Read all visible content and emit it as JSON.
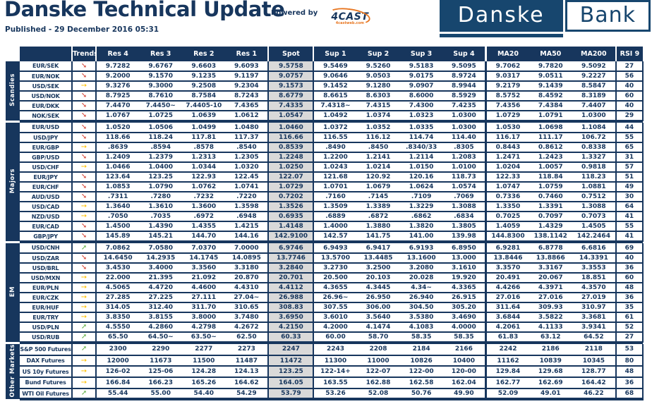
{
  "header": {
    "title": "Danske Technical Update",
    "published": "Published - 29 December 2016 05:31",
    "powered_by": "Powered by",
    "powered_logo": "4CAST",
    "powered_sub": "4castweb.com",
    "logo_danske": "Danske",
    "logo_bank": "Bank"
  },
  "colors": {
    "navy": "#17365d",
    "logo-navy": "#17466e",
    "spot-gray": "#d9d9d9",
    "red": "#d23f31",
    "amber": "#ffc000",
    "green": "#5fae44",
    "orange": "#e87722"
  },
  "trend_icons": {
    "down": "➘",
    "flat": "➙",
    "up": "➚"
  },
  "table": {
    "columns": [
      "Trends",
      "Res 4",
      "Res 3",
      "Res 2",
      "Res 1",
      "Spot",
      "Sup 1",
      "Sup 2",
      "Sup 3",
      "Sup 4",
      "MA20",
      "MA50",
      "MA200",
      "RSI 9"
    ],
    "value_keys": [
      "res4",
      "res3",
      "res2",
      "res1",
      "spot",
      "sup1",
      "sup2",
      "sup3",
      "sup4",
      "ma20",
      "ma50",
      "ma200",
      "rsi"
    ],
    "groups": [
      {
        "label": "Scandies",
        "rows": [
          {
            "pair": "EUR/SEK",
            "trend": "down",
            "values": [
              "9.7282",
              "9.6767",
              "9.6603",
              "9.6093",
              "9.5758",
              "9.5469",
              "9.5260",
              "9.5183",
              "9.5095",
              "9.7062",
              "9.7820",
              "9.5092",
              "27"
            ]
          },
          {
            "pair": "EUR/NOK",
            "trend": "down",
            "values": [
              "9.2000",
              "9.1570",
              "9.1235",
              "9.1197",
              "9.0757",
              "9.0646",
              "9.0503",
              "9.0175",
              "8.9724",
              "9.0317",
              "9.0511",
              "9.2227",
              "56"
            ]
          },
          {
            "pair": "USD/SEK",
            "trend": "flat",
            "values": [
              "9.3276",
              "9.3000",
              "9.2508",
              "9.2304",
              "9.1573",
              "9.1452",
              "9.1280",
              "9.0907",
              "8.9944",
              "9.2179",
              "9.1439",
              "8.5847",
              "40"
            ]
          },
          {
            "pair": "USD/NOK",
            "trend": "down",
            "values": [
              "8.7925",
              "8.7610",
              "8.7584",
              "8.7243",
              "8.6779",
              "8.6615",
              "8.6303",
              "8.6000",
              "8.5929",
              "8.5752",
              "8.4592",
              "8.3189",
              "60"
            ]
          },
          {
            "pair": "EUR/DKK",
            "trend": "down",
            "values": [
              "7.4470",
              "7.4450~",
              "7.4405-10",
              "7.4365",
              "7.4335",
              "7.4318~",
              "7.4315",
              "7.4300",
              "7.4235",
              "7.4356",
              "7.4384",
              "7.4407",
              "40"
            ]
          },
          {
            "pair": "NOK/SEK",
            "trend": "down",
            "values": [
              "1.0767",
              "1.0725",
              "1.0639",
              "1.0612",
              "1.0547",
              "1.0492",
              "1.0374",
              "1.0323",
              "1.0300",
              "1.0729",
              "1.0791",
              "1.0300",
              "29"
            ]
          }
        ]
      },
      {
        "label": "Majors",
        "rows": [
          {
            "pair": "EUR/USD",
            "trend": "down",
            "values": [
              "1.0520",
              "1.0506",
              "1.0499",
              "1.0480",
              "1.0460",
              "1.0372",
              "1.0352",
              "1.0335",
              "1.0300",
              "1.0530",
              "1.0698",
              "1.1084",
              "44"
            ]
          },
          {
            "pair": "USD/JPY",
            "trend": "down",
            "values": [
              "118.66",
              "118.24",
              "117.81",
              "117.37",
              "116.66",
              "116.55",
              "116.12",
              "114.74",
              "114.40",
              "116.17",
              "111.17",
              "106.72",
              "55"
            ]
          },
          {
            "pair": "EUR/GBP",
            "trend": "flat",
            "values": [
              ".8639",
              ".8594",
              ".8578",
              ".8540",
              "0.8539",
              ".8490",
              ".8450",
              ".8340/33",
              ".8305",
              "0.8443",
              "0.8612",
              "0.8338",
              "65"
            ]
          },
          {
            "pair": "GBP/USD",
            "trend": "down",
            "values": [
              "1.2409",
              "1.2379",
              "1.2313",
              "1.2305",
              "1.2248",
              "1.2200",
              "1.2141",
              "1.2114",
              "1.2083",
              "1.2471",
              "1.2423",
              "1.3327",
              "31"
            ]
          },
          {
            "pair": "USD/CHF",
            "trend": "flat",
            "values": [
              "1.0466",
              "1.0400",
              "1.0344",
              "1.0320",
              "1.0250",
              "1.0243",
              "1.0214",
              "1.0150",
              "1.0100",
              "1.0204",
              "1.0057",
              "0.9818",
              "57"
            ]
          },
          {
            "pair": "EUR/JPY",
            "trend": "down",
            "values": [
              "123.64",
              "123.25",
              "122.93",
              "122.45",
              "122.07",
              "121.68",
              "120.92",
              "120.16",
              "118.73",
              "122.33",
              "118.84",
              "118.23",
              "51"
            ]
          },
          {
            "pair": "EUR/CHF",
            "trend": "down",
            "values": [
              "1.0853",
              "1.0790",
              "1.0762",
              "1.0741",
              "1.0729",
              "1.0701",
              "1.0679",
              "1.0624",
              "1.0574",
              "1.0747",
              "1.0759",
              "1.0881",
              "49"
            ]
          },
          {
            "pair": "AUD/USD",
            "trend": "down",
            "values": [
              ".7311",
              ".7280",
              ".7232",
              ".7220",
              "0.7202",
              ".7160",
              ".7145",
              ".7109",
              ".7069",
              "0.7336",
              "0.7460",
              "0.7512",
              "30"
            ]
          },
          {
            "pair": "USD/CAD",
            "trend": "flat",
            "values": [
              "1.3640",
              "1.3610",
              "1.3600",
              "1.3598",
              "1.3526",
              "1.3509",
              "1.3389",
              "1.3229",
              "1.3088",
              "1.3350",
              "1.3391",
              "1.3088",
              "64"
            ]
          },
          {
            "pair": "NZD/USD",
            "trend": "flat",
            "values": [
              ".7050",
              ".7035",
              ".6972",
              ".6948",
              "0.6935",
              ".6889",
              ".6872",
              ".6862",
              ".6834",
              "0.7025",
              "0.7097",
              "0.7073",
              "41"
            ]
          },
          {
            "pair": "EUR/CAD",
            "trend": "down",
            "values": [
              "1.4500",
              "1.4390",
              "1.4355",
              "1.4215",
              "1.4148",
              "1.4000",
              "1.3880",
              "1.3820",
              "1.3805",
              "1.4059",
              "1.4329",
              "1.4505",
              "55"
            ]
          },
          {
            "pair": "GBP/JPY",
            "trend": "down",
            "values": [
              "145.89",
              "145.21",
              "144.70",
              "144.16",
              "142.9100",
              "142.57",
              "141.75",
              "141.00",
              "139.98",
              "144.8300",
              "138.1142",
              "142.2464",
              "41"
            ]
          }
        ]
      },
      {
        "label": "EM",
        "rows": [
          {
            "pair": "USD/CNH",
            "trend": "up",
            "values": [
              "7.0862",
              "7.0580",
              "7.0370",
              "7.0000",
              "6.9746",
              "6.9493",
              "6.9417",
              "6.9193",
              "6.8950",
              "6.9281",
              "6.8778",
              "6.6816",
              "69"
            ]
          },
          {
            "pair": "USD/ZAR",
            "trend": "down",
            "values": [
              "14.6450",
              "14.2935",
              "14.1745",
              "14.0895",
              "13.7746",
              "13.5700",
              "13.4485",
              "13.1600",
              "13.000",
              "13.8446",
              "13.8866",
              "14.3391",
              "40"
            ]
          },
          {
            "pair": "USD/BRL",
            "trend": "down",
            "values": [
              "3.4530",
              "3.4000",
              "3.3560",
              "3.3180",
              "3.2840",
              "3.2730",
              "3.2500",
              "3.2080",
              "3.1610",
              "3.3570",
              "3.3167",
              "3.3553",
              "36"
            ]
          },
          {
            "pair": "USD/MXN",
            "trend": "flat",
            "values": [
              "22.000",
              "21.395",
              "21.092",
              "20.870",
              "20.701",
              "20.500",
              "20.103",
              "20.028",
              "19.920",
              "20.491",
              "20.067",
              "18.851",
              "60"
            ]
          },
          {
            "pair": "EUR/PLN",
            "trend": "flat",
            "values": [
              "4.5065",
              "4.4720",
              "4.4600",
              "4.4310",
              "4.4112",
              "4.3655",
              "4.3445",
              "4.34~",
              "4.3365",
              "4.4266",
              "4.3971",
              "4.3570",
              "48"
            ]
          },
          {
            "pair": "EUR/CZK",
            "trend": "flat",
            "values": [
              "27.285",
              "27.225",
              "27.111",
              "27.04~",
              "26.988",
              "26.96~",
              "26.950",
              "26.940",
              "26.915",
              "27.016",
              "27.016",
              "27.019",
              "36"
            ]
          },
          {
            "pair": "EUR/HUF",
            "trend": "flat",
            "values": [
              "314.05",
              "312.40",
              "311.70",
              "310.65",
              "308.83",
              "307.55",
              "306.00",
              "304.50",
              "305.20",
              "311.64",
              "309.93",
              "310.97",
              "35"
            ]
          },
          {
            "pair": "EUR/TRY",
            "trend": "flat",
            "values": [
              "3.8350",
              "3.8155",
              "3.8000",
              "3.7480",
              "3.6950",
              "3.6010",
              "3.5640",
              "3.5380",
              "3.4690",
              "3.6844",
              "3.5822",
              "3.3681",
              "61"
            ]
          },
          {
            "pair": "USD/PLN",
            "trend": "up",
            "values": [
              "4.5550",
              "4.2860",
              "4.2798",
              "4.2672",
              "4.2150",
              "4.2000",
              "4.1474",
              "4.1083",
              "4.0000",
              "4.2061",
              "4.1133",
              "3.9341",
              "52"
            ]
          },
          {
            "pair": "USD/RUB",
            "trend": "up",
            "values": [
              "65.50",
              "64.50~",
              "63.50~",
              "62.50",
              "60.33",
              "60.00",
              "58.70",
              "58.35",
              "58.35",
              "61.83",
              "63.12",
              "64.52",
              "27"
            ]
          }
        ]
      },
      {
        "label": "Other Markets",
        "rows": [
          {
            "pair": "S&P 500 Futures",
            "trend": "up",
            "values": [
              "2300",
              "2290",
              "2277",
              "2273",
              "2247",
              "2243",
              "2208",
              "2184",
              "2166",
              "2242",
              "2186",
              "2118",
              "53"
            ]
          },
          {
            "pair": "DAX Futures",
            "trend": "flat",
            "values": [
              "12000",
              "11673",
              "11500",
              "11487",
              "11472",
              "11300",
              "11000",
              "10826",
              "10400",
              "11162",
              "10839",
              "10345",
              "80"
            ]
          },
          {
            "pair": "US 10y Futures",
            "trend": "flat",
            "values": [
              "126-02",
              "125-06",
              "124.28",
              "124.13",
              "123.25",
              "122-14+",
              "122-07",
              "122-00",
              "120-00",
              "129.84",
              "129.68",
              "128.77",
              "48"
            ]
          },
          {
            "pair": "Bund Futures",
            "trend": "flat",
            "values": [
              "166.84",
              "166.23",
              "165.26",
              "164.62",
              "164.05",
              "163.55",
              "162.88",
              "162.58",
              "162.04",
              "162.77",
              "162.69",
              "164.42",
              "36"
            ]
          },
          {
            "pair": "WTI Oil Futures",
            "trend": "up",
            "values": [
              "55.44",
              "55.00",
              "54.40",
              "54.29",
              "53.79",
              "53.26",
              "52.08",
              "50.76",
              "49.90",
              "52.09",
              "49.01",
              "46.22",
              "68"
            ]
          }
        ]
      }
    ]
  }
}
